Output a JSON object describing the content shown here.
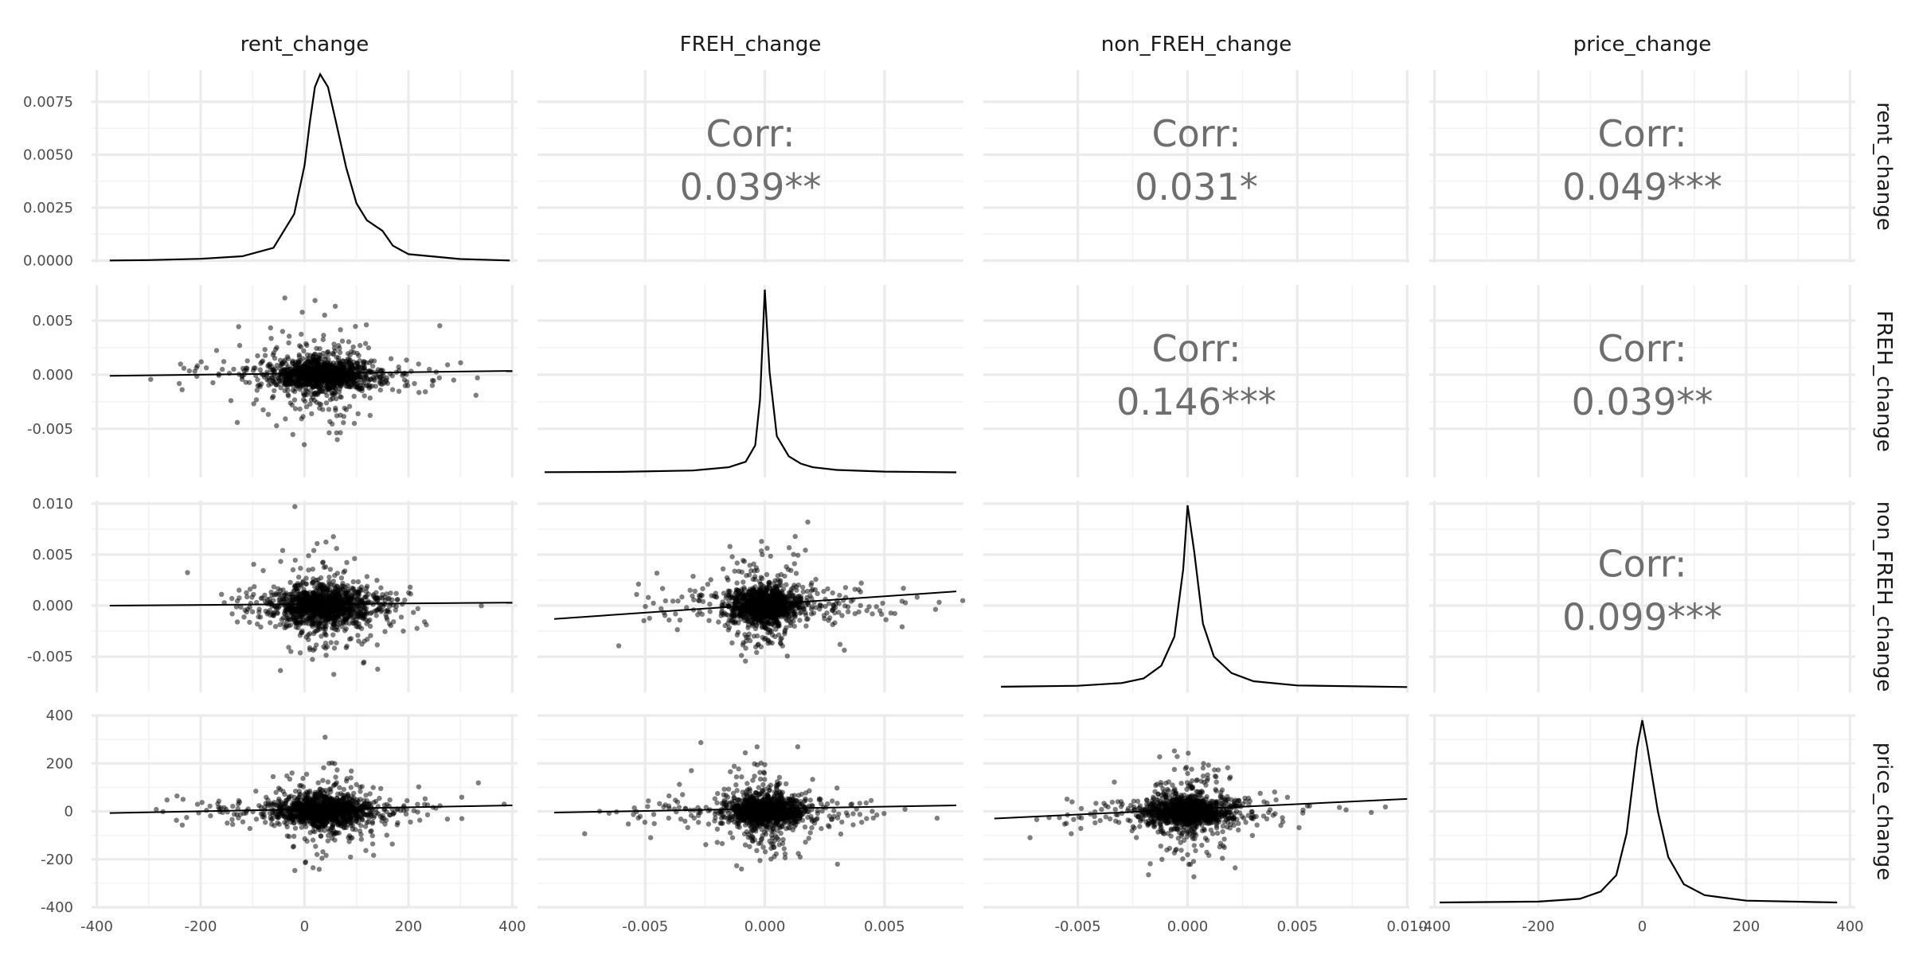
{
  "chart_data": {
    "type": "scatter",
    "layout": "pairs-matrix",
    "variables": [
      "rent_change",
      "FREH_change",
      "non_FREH_change",
      "price_change"
    ],
    "strip_labels_top": [
      "rent_change",
      "FREH_change",
      "non_FREH_change",
      "price_change"
    ],
    "strip_labels_right": [
      "rent_change",
      "FREH_change",
      "non_FREH_change",
      "price_change"
    ],
    "axes": {
      "x": [
        {
          "variable": "rent_change",
          "range": [
            -410,
            410
          ],
          "ticks": [
            -400,
            -200,
            0,
            200,
            400
          ],
          "tick_labels": [
            "-400",
            "-200",
            "0",
            "200",
            "400"
          ]
        },
        {
          "variable": "FREH_change",
          "range": [
            -0.0095,
            0.0083
          ],
          "ticks": [
            -0.005,
            0,
            0.005
          ],
          "tick_labels": [
            "-0.005",
            "0.000",
            "0.005"
          ]
        },
        {
          "variable": "non_FREH_change",
          "range": [
            -0.0093,
            0.0101
          ],
          "ticks": [
            -0.005,
            0,
            0.005,
            0.01
          ],
          "tick_labels": [
            "-0.005",
            "0.000",
            "0.005",
            "0.010"
          ]
        },
        {
          "variable": "price_change",
          "range": [
            -410,
            410
          ],
          "ticks": [
            -400,
            -200,
            0,
            200,
            400
          ],
          "tick_labels": [
            "-400",
            "-200",
            "0",
            "200",
            "400"
          ]
        }
      ],
      "y": [
        {
          "variable": "rent_change",
          "range": [
            -0.0001,
            0.009
          ],
          "ticks": [
            0,
            0.0025,
            0.005,
            0.0075
          ],
          "tick_labels": [
            "0.0000",
            "0.0025",
            "0.0050",
            "0.0075"
          ]
        },
        {
          "variable": "FREH_change",
          "range": [
            -0.0095,
            0.0083
          ],
          "ticks": [
            -0.005,
            0,
            0.005
          ],
          "tick_labels": [
            "-0.005",
            "0.000",
            "0.005"
          ]
        },
        {
          "variable": "non_FREH_change",
          "range": [
            -0.0085,
            0.0103
          ],
          "ticks": [
            -0.005,
            0,
            0.005,
            0.01
          ],
          "tick_labels": [
            "-0.005",
            "0.000",
            "0.005",
            "0.010"
          ]
        },
        {
          "variable": "price_change",
          "range": [
            -400,
            400
          ],
          "ticks": [
            -400,
            -200,
            0,
            200,
            400
          ],
          "tick_labels": [
            "-400",
            "-200",
            "0",
            "200",
            "400"
          ]
        }
      ]
    },
    "correlations": [
      {
        "row": 0,
        "col": 1,
        "label": "Corr:",
        "value": "0.039**"
      },
      {
        "row": 0,
        "col": 2,
        "label": "Corr:",
        "value": "0.031*"
      },
      {
        "row": 0,
        "col": 3,
        "label": "Corr:",
        "value": "0.049***"
      },
      {
        "row": 1,
        "col": 2,
        "label": "Corr:",
        "value": "0.146***"
      },
      {
        "row": 1,
        "col": 3,
        "label": "Corr:",
        "value": "0.039**"
      },
      {
        "row": 2,
        "col": 3,
        "label": "Corr:",
        "value": "0.099***"
      }
    ],
    "densities": [
      {
        "variable": "rent_change",
        "x": [
          -375,
          -300,
          -200,
          -120,
          -60,
          -20,
          0,
          10,
          20,
          30,
          45,
          60,
          80,
          100,
          120,
          150,
          170,
          200,
          300,
          395
        ],
        "y": [
          0,
          2e-05,
          8e-05,
          0.0002,
          0.0006,
          0.0022,
          0.0045,
          0.0065,
          0.0082,
          0.0088,
          0.0082,
          0.0066,
          0.0044,
          0.0027,
          0.0019,
          0.0014,
          0.0007,
          0.0003,
          7e-05,
          0
        ]
      },
      {
        "variable": "FREH_change",
        "x": [
          -0.0092,
          -0.006,
          -0.003,
          -0.0015,
          -0.0008,
          -0.0004,
          -0.0002,
          0,
          0.0002,
          0.0005,
          0.001,
          0.0015,
          0.002,
          0.003,
          0.005,
          0.008
        ],
        "y": [
          0.003,
          0.005,
          0.012,
          0.03,
          0.06,
          0.15,
          0.4,
          1,
          0.55,
          0.2,
          0.09,
          0.05,
          0.03,
          0.015,
          0.006,
          0.002
        ]
      },
      {
        "variable": "non_FREH_change",
        "x": [
          -0.0085,
          -0.005,
          -0.003,
          -0.002,
          -0.0012,
          -0.0006,
          -0.0002,
          0,
          0.0003,
          0.0007,
          0.0012,
          0.002,
          0.003,
          0.005,
          0.01
        ],
        "y": [
          0.005,
          0.01,
          0.025,
          0.05,
          0.12,
          0.28,
          0.65,
          1,
          0.75,
          0.35,
          0.17,
          0.08,
          0.035,
          0.012,
          0.003
        ]
      },
      {
        "variable": "price_change",
        "x": [
          -390,
          -200,
          -120,
          -80,
          -50,
          -30,
          -10,
          0,
          10,
          30,
          50,
          80,
          120,
          200,
          375
        ],
        "y": [
          0,
          0.005,
          0.02,
          0.06,
          0.15,
          0.38,
          0.85,
          1,
          0.85,
          0.5,
          0.25,
          0.1,
          0.04,
          0.01,
          0
        ]
      }
    ],
    "scatter_panels": [
      {
        "row": 1,
        "col": 0,
        "x": "rent_change",
        "y": "FREH_change",
        "trend": {
          "x": [
            -375,
            400
          ],
          "y": [
            -0.0001,
            0.00035
          ]
        }
      },
      {
        "row": 2,
        "col": 0,
        "x": "rent_change",
        "y": "non_FREH_change",
        "trend": {
          "x": [
            -375,
            400
          ],
          "y": [
            0,
            0.0003
          ]
        }
      },
      {
        "row": 2,
        "col": 1,
        "x": "FREH_change",
        "y": "non_FREH_change",
        "trend": {
          "x": [
            -0.0088,
            0.008
          ],
          "y": [
            -0.0013,
            0.0014
          ]
        }
      },
      {
        "row": 3,
        "col": 0,
        "x": "rent_change",
        "y": "price_change",
        "trend": {
          "x": [
            -375,
            400
          ],
          "y": [
            -7,
            25
          ]
        }
      },
      {
        "row": 3,
        "col": 1,
        "x": "FREH_change",
        "y": "price_change",
        "trend": {
          "x": [
            -0.0088,
            0.008
          ],
          "y": [
            -5,
            25
          ]
        }
      },
      {
        "row": 3,
        "col": 2,
        "x": "non_FREH_change",
        "y": "price_change",
        "trend": {
          "x": [
            -0.0088,
            0.01
          ],
          "y": [
            -30,
            52
          ]
        }
      }
    ],
    "grid": true,
    "legend": "none"
  }
}
